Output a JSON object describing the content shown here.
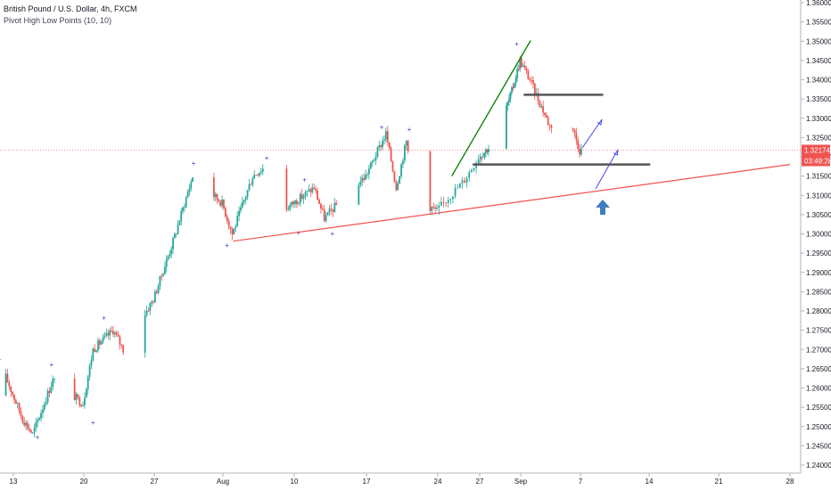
{
  "header": {
    "title": "British Pound / U.S. Dollar, 4h, FXCM",
    "indicator": "Pivot High Low Points (10, 10)"
  },
  "chart_data": {
    "type": "candlestick",
    "symbol": "British Pound / U.S. Dollar",
    "timeframe": "4h",
    "exchange": "FXCM",
    "indicator": "Pivot High Low Points (10, 10)",
    "y_axis": {
      "side": "right",
      "range": [
        1.2375,
        1.3615
      ],
      "tick_labels": [
        "1.36000",
        "1.35500",
        "1.35000",
        "1.34500",
        "1.34000",
        "1.33500",
        "1.33000",
        "1.32500",
        "1.32000",
        "1.31500",
        "1.31000",
        "1.30500",
        "1.30000",
        "1.29500",
        "1.29000",
        "1.28500",
        "1.28000",
        "1.27500",
        "1.27000",
        "1.26500",
        "1.26000",
        "1.25500",
        "1.25000",
        "1.24500",
        "1.24000"
      ],
      "tick_values": [
        1.36,
        1.355,
        1.35,
        1.345,
        1.34,
        1.335,
        1.33,
        1.325,
        1.32,
        1.315,
        1.31,
        1.305,
        1.3,
        1.295,
        1.29,
        1.285,
        1.28,
        1.275,
        1.27,
        1.265,
        1.26,
        1.255,
        1.25,
        1.245,
        1.24
      ]
    },
    "x_axis": {
      "tick_labels": [
        "13",
        "20",
        "27",
        "Aug",
        "10",
        "17",
        "24",
        "27",
        "Sep",
        "7",
        "14",
        "21",
        "28"
      ]
    },
    "current_price": "1.32174",
    "countdown": "03:49:28",
    "colors": {
      "up": "#26a69a",
      "down": "#ef5350",
      "support": "#ef5350",
      "channel": "#008000",
      "levels": "#555555",
      "arrow": "#3f7fbf",
      "projection": "#4444ee"
    },
    "keypoints": [
      {
        "x": "Jul 10",
        "y": 1.258
      },
      {
        "x": "Jul 12",
        "y": 1.265
      },
      {
        "x": "Jul 14",
        "y": 1.252
      },
      {
        "x": "Jul 15",
        "y": 1.248
      },
      {
        "x": "Jul 17",
        "y": 1.262
      },
      {
        "x": "Jul 20",
        "y": 1.256
      },
      {
        "x": "Jul 21",
        "y": 1.27
      },
      {
        "x": "Jul 23",
        "y": 1.275
      },
      {
        "x": "Jul 24",
        "y": 1.27
      },
      {
        "x": "Jul 27",
        "y": 1.283
      },
      {
        "x": "Jul 29",
        "y": 1.298
      },
      {
        "x": "Jul 31",
        "y": 1.315
      },
      {
        "x": "Aug 3",
        "y": 1.308
      },
      {
        "x": "Aug 4",
        "y": 1.3
      },
      {
        "x": "Aug 6",
        "y": 1.315
      },
      {
        "x": "Aug 7",
        "y": 1.317
      },
      {
        "x": "Aug 9",
        "y": 1.306
      },
      {
        "x": "Aug 11",
        "y": 1.31
      },
      {
        "x": "Aug 12",
        "y": 1.312
      },
      {
        "x": "Aug 13",
        "y": 1.304
      },
      {
        "x": "Aug 15",
        "y": 1.31
      },
      {
        "x": "Aug 17",
        "y": 1.315
      },
      {
        "x": "Aug 19",
        "y": 1.326
      },
      {
        "x": "Aug 20",
        "y": 1.312
      },
      {
        "x": "Aug 21",
        "y": 1.324
      },
      {
        "x": "Aug 22",
        "y": 1.309
      },
      {
        "x": "Aug 24",
        "y": 1.306
      },
      {
        "x": "Aug 26",
        "y": 1.314
      },
      {
        "x": "Aug 27",
        "y": 1.32
      },
      {
        "x": "Aug 29",
        "y": 1.324
      },
      {
        "x": "Aug 31",
        "y": 1.337
      },
      {
        "x": "Sep 1",
        "y": 1.345
      },
      {
        "x": "Sep 2",
        "y": 1.34
      },
      {
        "x": "Sep 3",
        "y": 1.334
      },
      {
        "x": "Sep 4",
        "y": 1.328
      },
      {
        "x": "Sep 6",
        "y": 1.33
      },
      {
        "x": "Sep 7",
        "y": 1.3217
      }
    ],
    "pivot_highs": [
      1.2665,
      1.2652,
      1.2773,
      1.3175,
      1.3188,
      1.3132,
      1.3268,
      1.3262,
      1.3484
    ],
    "pivot_lows": [
      1.248,
      1.2518,
      1.2978,
      1.301,
      1.3008,
      1.3062
    ],
    "annotations": {
      "support_line": [
        {
          "x": "Aug 4",
          "y": 1.2981
        },
        {
          "x": "Sep 28",
          "y": 1.318
        }
      ],
      "channel_line": [
        {
          "x": "Aug 25",
          "y": 1.315
        },
        {
          "x": "Sep 2",
          "y": 1.3502
        }
      ],
      "resistance_level": 1.3361,
      "support_level": 1.318,
      "projection_arrows": 2,
      "buy_arrow": "up"
    }
  }
}
